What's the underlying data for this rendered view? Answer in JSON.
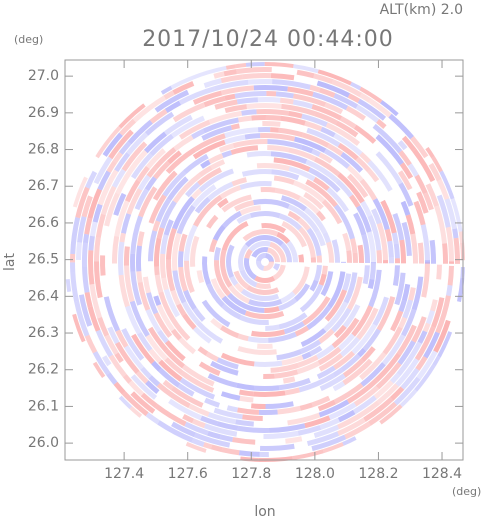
{
  "chart_data": {
    "type": "radar-ppi",
    "title": "2017/10/24 00:44:00",
    "subtitle": "ALT(km) 2.0",
    "x_label": "lon",
    "y_label": "lat",
    "x_unit": "(deg)",
    "y_unit": "(deg)",
    "xlim": [
      127.214,
      128.466
    ],
    "ylim": [
      25.954,
      27.044
    ],
    "xticks": [
      127.4,
      127.6,
      127.8,
      {
        "value": 128,
        "label": "128.0"
      },
      128.2,
      128.4
    ],
    "yticks": [
      {
        "value": 26,
        "label": "26.0"
      },
      26.1,
      26.2,
      26.3,
      26.4,
      26.5,
      26.6,
      26.7,
      26.8,
      26.9,
      {
        "value": 27,
        "label": "27.0"
      }
    ]
  }
}
